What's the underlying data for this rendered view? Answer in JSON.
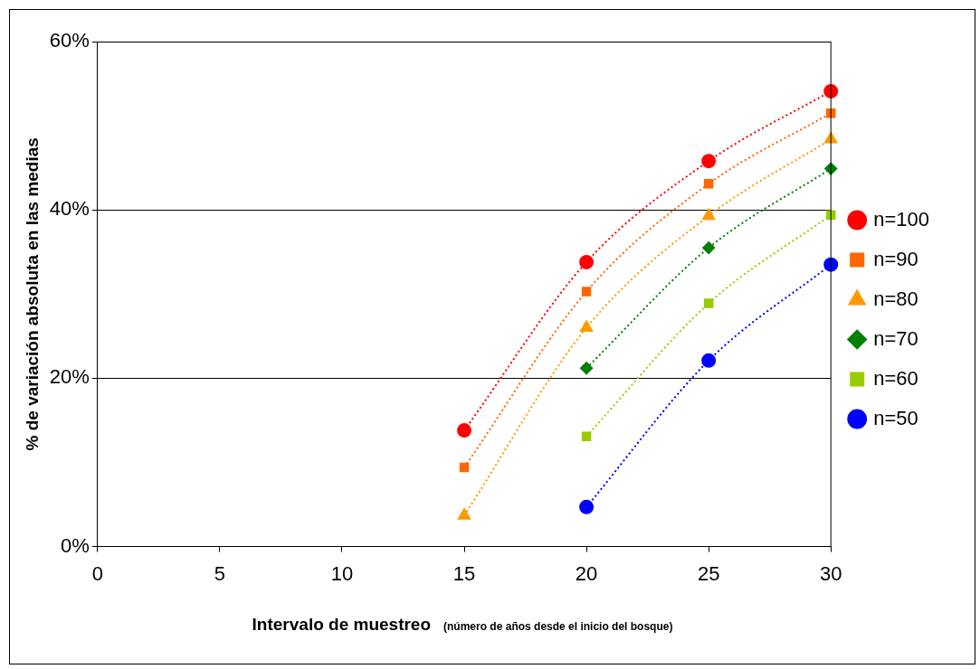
{
  "chart_data": {
    "type": "line",
    "xlabel": "Intervalo de muestreo",
    "ylabel": "% de variación absoluta en las medias",
    "annotations": [
      "(número de años desde el inicio del bosque)"
    ],
    "xlim": [
      0,
      30
    ],
    "xticks": [
      0,
      5,
      10,
      15,
      20,
      25,
      30
    ],
    "ylim": [
      0,
      60
    ],
    "yticks": [
      {
        "value": 0,
        "label": "0%"
      },
      {
        "value": 20,
        "label": "20%"
      },
      {
        "value": 40,
        "label": "40%"
      },
      {
        "value": 60,
        "label": "60%"
      }
    ],
    "grid": "y",
    "legend": "right",
    "line_style": "dotted",
    "series": [
      {
        "name": "n=100",
        "color": "#ff0000",
        "marker": "circle",
        "x": [
          15,
          20,
          25,
          30
        ],
        "values": [
          13.8,
          33.8,
          45.8,
          54.1
        ]
      },
      {
        "name": "n=90",
        "color": "#ff6600",
        "marker": "square",
        "x": [
          15,
          20,
          25,
          30
        ],
        "values": [
          9.4,
          30.3,
          43.1,
          51.5
        ]
      },
      {
        "name": "n=80",
        "color": "#ff9900",
        "marker": "triangle",
        "x": [
          15,
          20,
          25,
          30
        ],
        "values": [
          3.7,
          26.0,
          39.3,
          48.4
        ]
      },
      {
        "name": "n=70",
        "color": "#008000",
        "marker": "diamond",
        "x": [
          20,
          25,
          30
        ],
        "values": [
          21.2,
          35.5,
          44.9
        ]
      },
      {
        "name": "n=60",
        "color": "#99cc00",
        "marker": "square",
        "x": [
          20,
          25,
          30
        ],
        "values": [
          13.1,
          28.9,
          39.4
        ]
      },
      {
        "name": "n=50",
        "color": "#0000ff",
        "marker": "circle",
        "x": [
          20,
          25,
          30
        ],
        "values": [
          4.7,
          22.1,
          33.5
        ]
      }
    ]
  }
}
